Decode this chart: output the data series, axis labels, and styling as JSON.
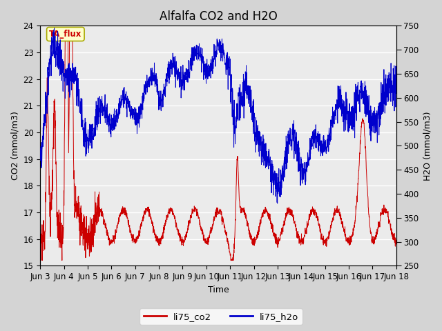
{
  "title": "Alfalfa CO2 and H2O",
  "xlabel": "Time",
  "ylabel_left": "CO2 (mmol/m3)",
  "ylabel_right": "H2O (mmol/m3)",
  "ylim_left": [
    15.0,
    24.0
  ],
  "ylim_right": [
    250,
    750
  ],
  "yticks_left": [
    15.0,
    16.0,
    17.0,
    18.0,
    19.0,
    20.0,
    21.0,
    22.0,
    23.0,
    24.0
  ],
  "yticks_right": [
    250,
    300,
    350,
    400,
    450,
    500,
    550,
    600,
    650,
    700,
    750
  ],
  "xtick_labels": [
    "Jun 3",
    "Jun 4",
    "Jun 5",
    "Jun 6",
    "Jun 7",
    "Jun 8",
    "Jun 9",
    "Jun 10",
    "Jun 11",
    "Jun 12",
    "Jun 13",
    "Jun 14",
    "Jun 15",
    "Jun 16",
    "Jun 17",
    "Jun 18"
  ],
  "color_co2": "#cc0000",
  "color_h2o": "#0000cc",
  "legend_label_co2": "li75_co2",
  "legend_label_h2o": "li75_h2o",
  "annotation_text": "TA_flux",
  "annotation_bg": "#ffffcc",
  "annotation_border": "#aaaa00",
  "fig_bg": "#d4d4d4",
  "plot_bg": "#ebebeb",
  "grid_color": "#ffffff",
  "title_fontsize": 12,
  "axis_fontsize": 9,
  "tick_fontsize": 8.5,
  "n_days": 15,
  "pts_per_day": 144
}
